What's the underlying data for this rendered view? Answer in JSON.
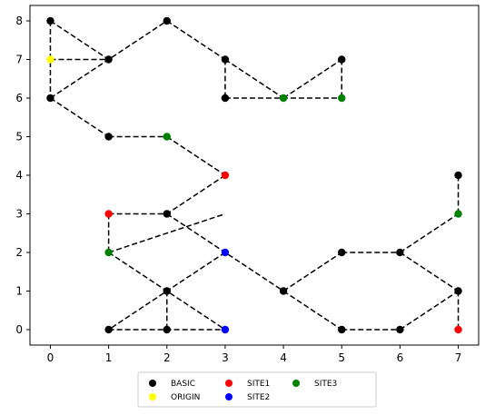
{
  "chart_data": {
    "type": "scatter",
    "title": "",
    "xlabel": "",
    "ylabel": "",
    "xlim": [
      -0.35,
      7.35
    ],
    "ylim": [
      -0.4,
      8.4
    ],
    "xticks": [
      0,
      1,
      2,
      3,
      4,
      5,
      6,
      7
    ],
    "yticks": [
      0,
      1,
      2,
      3,
      4,
      5,
      6,
      7,
      8
    ],
    "grid": false,
    "legend_position": "below",
    "legend_columns": 3,
    "edge_style": {
      "color": "#000000",
      "dash": "dashed"
    },
    "edges": [
      [
        [
          0,
          8
        ],
        [
          0,
          6
        ]
      ],
      [
        [
          0,
          8
        ],
        [
          1,
          7
        ]
      ],
      [
        [
          0,
          7
        ],
        [
          1,
          7
        ]
      ],
      [
        [
          0,
          6
        ],
        [
          2,
          8
        ]
      ],
      [
        [
          2,
          8
        ],
        [
          3,
          7
        ]
      ],
      [
        [
          3,
          7
        ],
        [
          3,
          6
        ]
      ],
      [
        [
          3,
          6
        ],
        [
          5,
          6
        ]
      ],
      [
        [
          3,
          7
        ],
        [
          4,
          6
        ]
      ],
      [
        [
          4,
          6
        ],
        [
          5,
          7
        ]
      ],
      [
        [
          5,
          7
        ],
        [
          5,
          6
        ]
      ],
      [
        [
          0,
          6
        ],
        [
          1,
          5
        ]
      ],
      [
        [
          1,
          5
        ],
        [
          2,
          5
        ]
      ],
      [
        [
          2,
          5
        ],
        [
          3,
          4
        ]
      ],
      [
        [
          3,
          4
        ],
        [
          2,
          3
        ]
      ],
      [
        [
          1,
          3
        ],
        [
          2,
          3
        ]
      ],
      [
        [
          1,
          3
        ],
        [
          1,
          2
        ]
      ],
      [
        [
          1,
          2
        ],
        [
          3,
          3
        ]
      ],
      [
        [
          2,
          3
        ],
        [
          4,
          1
        ]
      ],
      [
        [
          1,
          2
        ],
        [
          3,
          0
        ]
      ],
      [
        [
          3,
          2
        ],
        [
          1,
          0
        ]
      ],
      [
        [
          2,
          1
        ],
        [
          2,
          0
        ]
      ],
      [
        [
          1,
          0
        ],
        [
          3,
          0
        ]
      ],
      [
        [
          4,
          1
        ],
        [
          5,
          2
        ]
      ],
      [
        [
          5,
          2
        ],
        [
          6,
          2
        ]
      ],
      [
        [
          6,
          2
        ],
        [
          7,
          1
        ]
      ],
      [
        [
          7,
          1
        ],
        [
          7,
          0
        ]
      ],
      [
        [
          4,
          1
        ],
        [
          5,
          0
        ]
      ],
      [
        [
          5,
          0
        ],
        [
          6,
          0
        ]
      ],
      [
        [
          6,
          0
        ],
        [
          7,
          1
        ]
      ],
      [
        [
          6,
          2
        ],
        [
          7,
          3
        ]
      ],
      [
        [
          7,
          3
        ],
        [
          7,
          4
        ]
      ]
    ],
    "series": [
      {
        "name": "BASIC",
        "color": "#000000",
        "points": [
          [
            0,
            8
          ],
          [
            1,
            7
          ],
          [
            2,
            8
          ],
          [
            3,
            7
          ],
          [
            0,
            6
          ],
          [
            3,
            6
          ],
          [
            5,
            7
          ],
          [
            1,
            5
          ],
          [
            2,
            3
          ],
          [
            2,
            1
          ],
          [
            1,
            0
          ],
          [
            2,
            0
          ],
          [
            4,
            1
          ],
          [
            5,
            2
          ],
          [
            6,
            2
          ],
          [
            7,
            1
          ],
          [
            5,
            0
          ],
          [
            6,
            0
          ],
          [
            7,
            4
          ]
        ]
      },
      {
        "name": "ORIGIN",
        "color": "#ffff00",
        "points": [
          [
            0,
            7
          ]
        ]
      },
      {
        "name": "SITE1",
        "color": "#ff0000",
        "points": [
          [
            3,
            4
          ],
          [
            1,
            3
          ],
          [
            7,
            0
          ]
        ]
      },
      {
        "name": "SITE2",
        "color": "#0000ff",
        "points": [
          [
            3,
            2
          ],
          [
            3,
            0
          ]
        ]
      },
      {
        "name": "SITE3",
        "color": "#008000",
        "points": [
          [
            4,
            6
          ],
          [
            5,
            6
          ],
          [
            2,
            5
          ],
          [
            1,
            2
          ],
          [
            7,
            3
          ]
        ]
      }
    ]
  }
}
